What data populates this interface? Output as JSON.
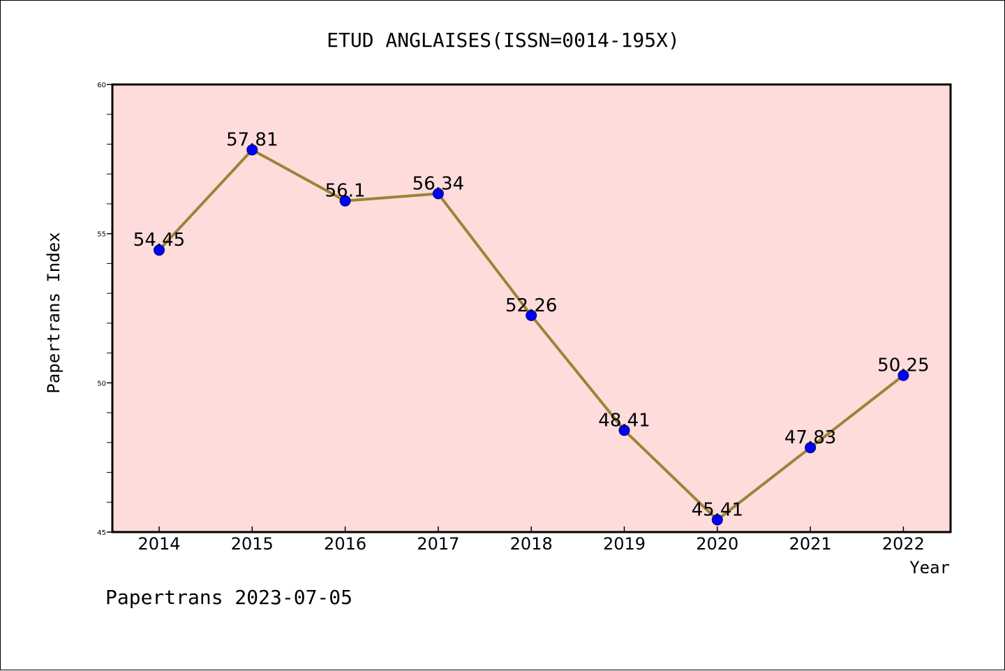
{
  "chart_data": {
    "type": "line",
    "title": "ETUD ANGLAISES(ISSN=0014-195X)",
    "xlabel": "Year",
    "ylabel": "Papertrans Index",
    "categories": [
      "2014",
      "2015",
      "2016",
      "2017",
      "2018",
      "2019",
      "2020",
      "2021",
      "2022"
    ],
    "series": [
      {
        "values": [
          54.45,
          57.81,
          56.1,
          56.34,
          52.26,
          48.41,
          45.41,
          47.83,
          50.25
        ],
        "labels": [
          "54.45",
          "57.81",
          "56.1",
          "56.34",
          "52.26",
          "48.41",
          "45.41",
          "47.83",
          "50.25"
        ],
        "line_color": "#9b8438",
        "marker_color": "#0000ff"
      }
    ],
    "ylim": [
      45,
      60
    ],
    "yticks": [
      "45",
      "50",
      "55",
      "60"
    ],
    "plot_background": "#ffdcdc",
    "grid": false,
    "legend": "none"
  },
  "footer": {
    "text": "Papertrans 2023-07-05"
  }
}
